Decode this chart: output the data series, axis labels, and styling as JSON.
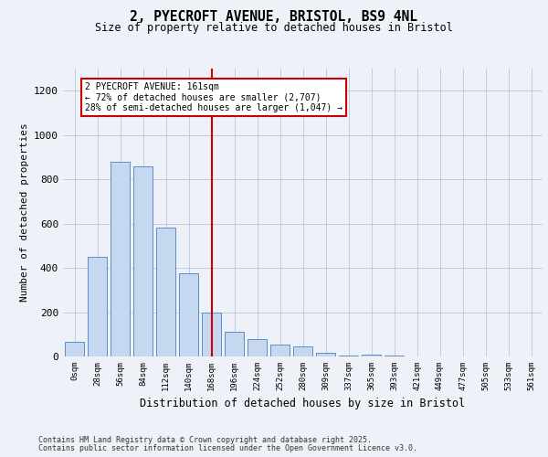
{
  "title_line1": "2, PYECROFT AVENUE, BRISTOL, BS9 4NL",
  "title_line2": "Size of property relative to detached houses in Bristol",
  "xlabel": "Distribution of detached houses by size in Bristol",
  "ylabel": "Number of detached properties",
  "bar_labels": [
    "0sqm",
    "28sqm",
    "56sqm",
    "84sqm",
    "112sqm",
    "140sqm",
    "168sqm",
    "196sqm",
    "224sqm",
    "252sqm",
    "280sqm",
    "309sqm",
    "337sqm",
    "365sqm",
    "393sqm",
    "421sqm",
    "449sqm",
    "477sqm",
    "505sqm",
    "533sqm",
    "561sqm"
  ],
  "bar_values": [
    65,
    450,
    880,
    860,
    580,
    375,
    200,
    110,
    80,
    55,
    45,
    15,
    5,
    10,
    5,
    0,
    0,
    0,
    0,
    0,
    0
  ],
  "bar_color": "#c5d8f0",
  "bar_edge_color": "#5b8fc9",
  "property_line_index": 6,
  "property_line_color": "#cc0000",
  "annotation_text": "2 PYECROFT AVENUE: 161sqm\n← 72% of detached houses are smaller (2,707)\n28% of semi-detached houses are larger (1,047) →",
  "annotation_box_color": "#ffffff",
  "annotation_box_edge": "#cc0000",
  "ylim": [
    0,
    1300
  ],
  "yticks": [
    0,
    200,
    400,
    600,
    800,
    1000,
    1200
  ],
  "footer1": "Contains HM Land Registry data © Crown copyright and database right 2025.",
  "footer2": "Contains public sector information licensed under the Open Government Licence v3.0.",
  "bg_color": "#eef2f8"
}
